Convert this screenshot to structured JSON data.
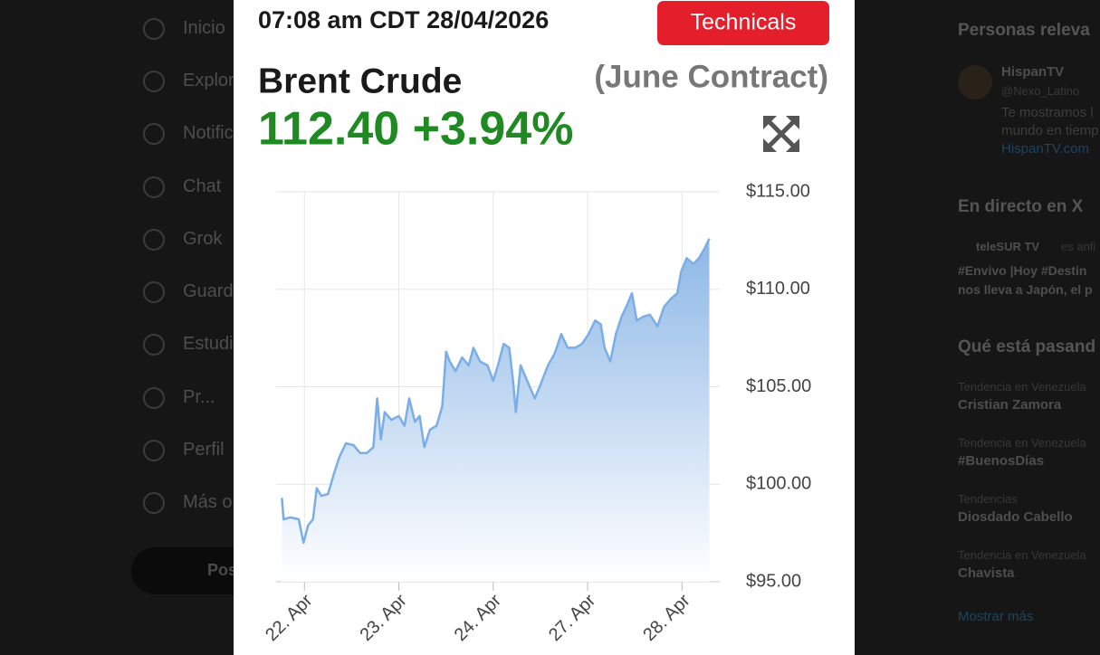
{
  "sidebar": {
    "items": [
      "Inicio",
      "Explor",
      "Notific",
      "Chat",
      "Grok",
      "Guard",
      "Estudi",
      "Pr...",
      "Perfil",
      "Más o"
    ],
    "post_button": "Pos"
  },
  "right_panel": {
    "relevant_title": "Personas releva",
    "account_name": "HispanTV",
    "account_handle": "@Nexo_Latino",
    "account_bio": [
      "Te mostramos l",
      "mundo en tiemp",
      "HispanTV.com"
    ],
    "live_title": "En directo en X",
    "live_account": "teleSUR TV",
    "live_note": "es anfi",
    "live_text": [
      "#Envivo |Hoy #Destin",
      "nos lleva a Japón, el p"
    ],
    "trends_title": "Qué está pasand",
    "trends": [
      {
        "context": "Tendencia en Venezuela",
        "name": "Cristian Zamora"
      },
      {
        "context": "Tendencia en Venezuela",
        "name": "#BuenosDías"
      },
      {
        "context": "Tendencias",
        "name": "Diosdado Cabello"
      },
      {
        "context": "Tendencia en Venezuela",
        "name": "Chavista"
      }
    ],
    "show_more": "Mostrar más"
  },
  "chart_data": {
    "type": "line",
    "timestamp": "07:08 am CDT 28/04/2026",
    "button": "Technicals",
    "title": "Brent Crude",
    "subtitle": "(June Contract)",
    "price": "112.40 +3.94%",
    "x": [
      -0.24,
      -0.22,
      -0.15,
      -0.06,
      -0.01,
      0.04,
      0.09,
      0.13,
      0.18,
      0.25,
      0.31,
      0.37,
      0.44,
      0.52,
      0.59,
      0.66,
      0.73,
      0.77,
      0.81,
      0.85,
      0.92,
      1.0,
      1.06,
      1.11,
      1.17,
      1.22,
      1.27,
      1.33,
      1.4,
      1.46,
      1.5,
      1.54,
      1.6,
      1.67,
      1.74,
      1.79,
      1.86,
      1.94,
      2.0,
      2.05,
      2.11,
      2.17,
      2.21,
      2.24,
      2.29,
      2.36,
      2.44,
      2.5,
      2.58,
      2.65,
      2.72,
      2.79,
      2.87,
      2.94,
      3.01,
      3.08,
      3.14,
      3.18,
      3.24,
      3.3,
      3.36,
      3.41,
      3.47,
      3.52,
      3.59,
      3.66,
      3.74,
      3.81,
      3.88,
      3.95,
      3.99,
      4.05,
      4.12,
      4.18,
      4.24,
      4.29
    ],
    "series": [
      {
        "color": "#7aaee6",
        "values": [
          99.3,
          98.2,
          98.3,
          98.2,
          97.0,
          97.9,
          98.2,
          99.8,
          99.4,
          99.5,
          100.5,
          101.4,
          102.1,
          102.0,
          101.6,
          101.6,
          101.9,
          104.4,
          102.3,
          103.7,
          103.3,
          103.5,
          103.0,
          104.4,
          103.2,
          103.5,
          101.9,
          102.8,
          103.0,
          104.0,
          106.8,
          106.3,
          105.8,
          106.5,
          106.1,
          107.0,
          106.3,
          106.1,
          105.3,
          106.1,
          107.2,
          107.0,
          105.3,
          103.7,
          106.1,
          105.3,
          104.4,
          105.1,
          106.1,
          106.7,
          107.7,
          107.0,
          107.0,
          107.2,
          107.7,
          108.4,
          108.2,
          107.0,
          106.3,
          107.7,
          108.6,
          109.1,
          109.8,
          108.4,
          108.6,
          108.7,
          108.1,
          109.1,
          109.5,
          109.8,
          110.9,
          111.6,
          111.3,
          111.6,
          112.1,
          112.6
        ]
      }
    ],
    "xlim": [
      -0.3,
      4.4
    ],
    "xticks": [
      {
        "value": 0,
        "label": "22. Apr"
      },
      {
        "value": 1,
        "label": "23. Apr"
      },
      {
        "value": 2,
        "label": "24. Apr"
      },
      {
        "value": 3,
        "label": "27. Apr"
      },
      {
        "value": 4,
        "label": "28. Apr"
      }
    ],
    "ylim": [
      95,
      115
    ],
    "yticks": [
      {
        "value": 95,
        "label": "$95.00"
      },
      {
        "value": 100,
        "label": "$100.00"
      },
      {
        "value": 105,
        "label": "$105.00"
      },
      {
        "value": 110,
        "label": "$110.00"
      },
      {
        "value": 115,
        "label": "$115.00"
      }
    ],
    "grid": true,
    "area_fill": true
  }
}
